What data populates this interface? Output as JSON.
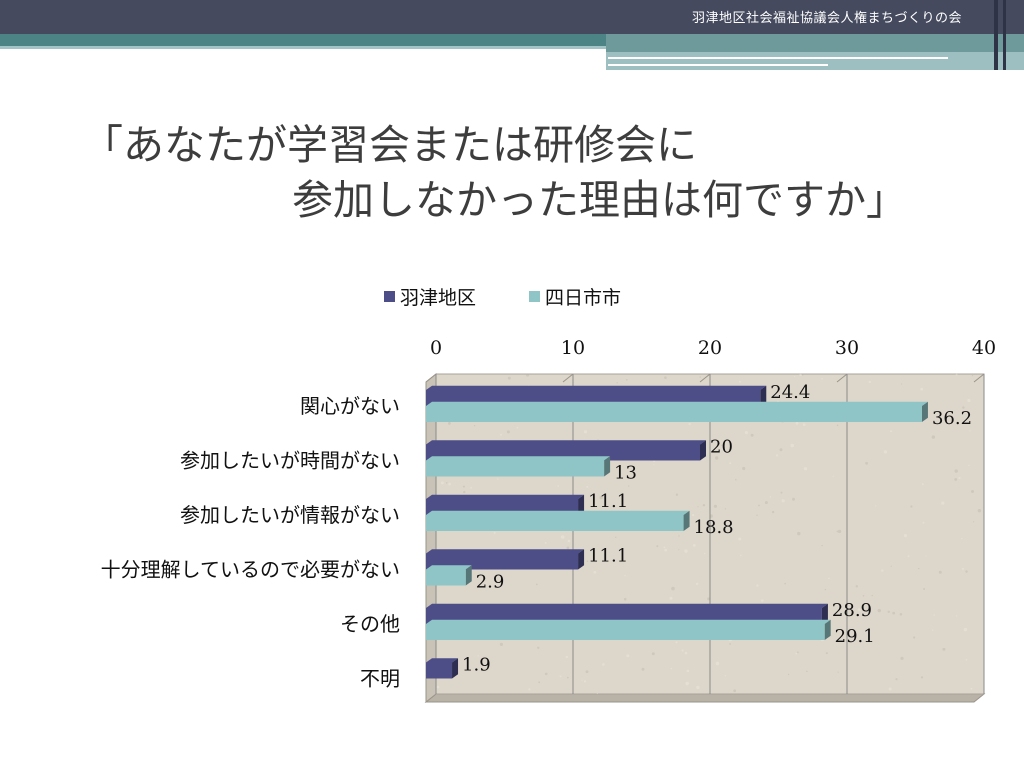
{
  "header": {
    "org_name": "羽津地区社会福祉協議会人権まちづくりの会"
  },
  "title": {
    "line1": "「あなたが学習会または研修会に",
    "line2": "参加しなかった理由は何ですか」"
  },
  "colors": {
    "series_1": "#4d4d88",
    "series_2": "#8fc5c7",
    "plot_background": "#ddd6cb",
    "gridline": "#8a8a8a"
  },
  "chart_data": {
    "type": "bar",
    "orientation": "horizontal",
    "categories": [
      "関心がない",
      "参加したいが時間がない",
      "参加したいが情報がない",
      "十分理解しているので必要がない",
      "その他",
      "不明"
    ],
    "series": [
      {
        "name": "羽津地区",
        "values": [
          24.4,
          20,
          11.1,
          11.1,
          28.9,
          1.9
        ]
      },
      {
        "name": "四日市市",
        "values": [
          36.2,
          13,
          18.8,
          2.9,
          29.1,
          null
        ]
      }
    ],
    "xlim": [
      0,
      40
    ],
    "x_ticks": [
      "0",
      "10",
      "20",
      "30",
      "40"
    ],
    "x_axis_position": "top",
    "grid": true,
    "legend": "top",
    "data_labels": [
      [
        "24.4",
        "20",
        "11.1",
        "11.1",
        "28.9",
        "1.9"
      ],
      [
        "36.2",
        "13",
        "18.8",
        "2.9",
        "29.1",
        ""
      ]
    ]
  }
}
